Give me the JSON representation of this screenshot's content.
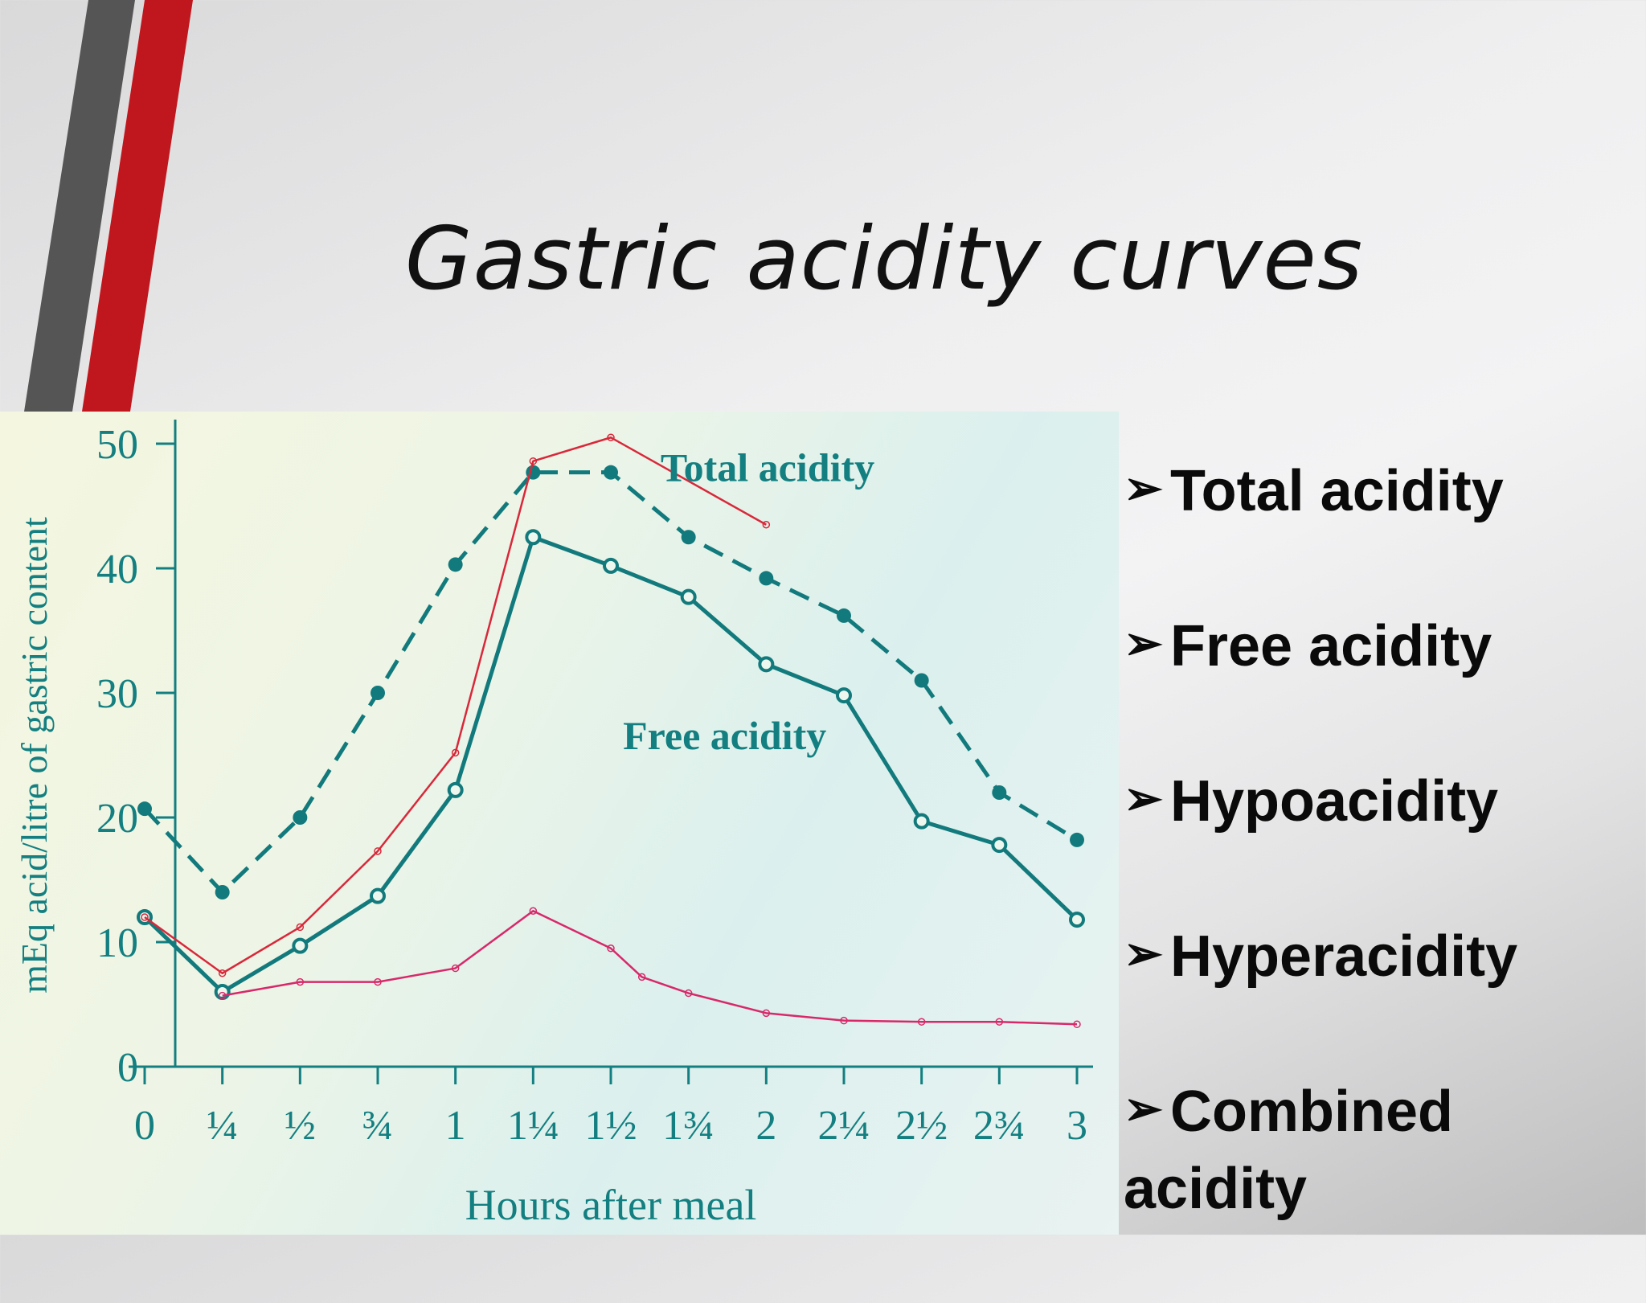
{
  "slide": {
    "title": "Gastric acidity curves",
    "accent_colors": {
      "red": "#c0171e",
      "dark_gray": "#555556"
    }
  },
  "bullets": [
    "Total acidity",
    "Free acidity",
    "Hypoacidity",
    "Hyperacidity",
    "Combined acidity"
  ],
  "chart_data": {
    "type": "line",
    "title": "",
    "xlabel": "Hours after meal",
    "ylabel": "mEq acid/litre of gastric content",
    "x": [
      0,
      0.25,
      0.5,
      0.75,
      1,
      1.25,
      1.5,
      1.75,
      2,
      2.25,
      2.5,
      2.75,
      3
    ],
    "x_tick_labels": [
      "0",
      "¼",
      "½",
      "¾",
      "1",
      "1¼",
      "1½",
      "1¾",
      "2",
      "2¼",
      "2½",
      "2¾",
      "3"
    ],
    "y_ticks": [
      0,
      10,
      20,
      30,
      40,
      50
    ],
    "xlim": [
      0,
      3
    ],
    "ylim": [
      0,
      50
    ],
    "grid": false,
    "annotations": [
      "Total acidity",
      "Free acidity"
    ],
    "series": [
      {
        "name": "Total acidity",
        "style": "dashed",
        "marker": "filled-circle",
        "color": "#127a7c",
        "x": [
          0,
          0.25,
          0.5,
          0.75,
          1,
          1.25,
          1.5,
          1.75,
          2,
          2.25,
          2.5,
          2.75,
          3
        ],
        "values": [
          20.7,
          14,
          20,
          30,
          40.3,
          47.7,
          47.7,
          42.5,
          39.2,
          36.2,
          31,
          22,
          18.2
        ]
      },
      {
        "name": "Free acidity",
        "style": "solid",
        "marker": "open-circle",
        "color": "#127a7c",
        "x": [
          0,
          0.25,
          0.5,
          0.75,
          1,
          1.25,
          1.5,
          1.75,
          2,
          2.25,
          2.5,
          2.75,
          3
        ],
        "values": [
          12,
          6,
          9.7,
          13.7,
          22.2,
          42.5,
          40.2,
          37.7,
          32.3,
          29.8,
          19.7,
          17.8,
          11.8
        ]
      },
      {
        "style": "solid",
        "marker": "small-circle",
        "color": "#d8283a",
        "x": [
          0,
          0.25,
          0.5,
          0.75,
          1,
          1.25,
          1.5,
          2
        ],
        "values": [
          12,
          7.5,
          11.2,
          17.3,
          25.2,
          48.6,
          50.5,
          43.5
        ]
      },
      {
        "style": "solid",
        "marker": "small-circle",
        "color": "#d8286a",
        "x": [
          0.25,
          0.5,
          0.75,
          1,
          1.25,
          1.5,
          1.6,
          1.75,
          2,
          2.25,
          2.5,
          2.75,
          3
        ],
        "values": [
          5.7,
          6.8,
          6.8,
          7.9,
          12.5,
          9.5,
          7.2,
          5.9,
          4.3,
          3.7,
          3.6,
          3.6,
          3.4
        ]
      }
    ]
  }
}
